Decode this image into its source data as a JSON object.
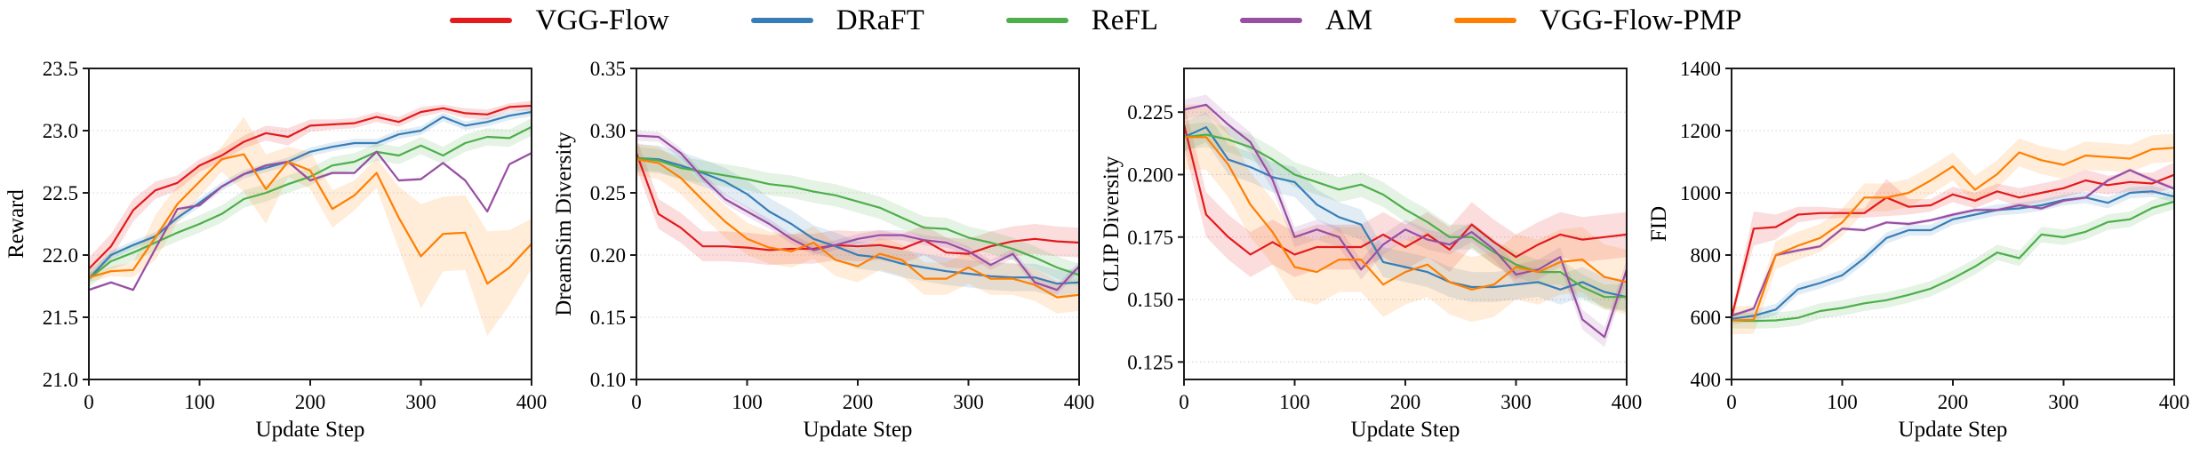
{
  "legend": {
    "items": [
      {
        "label": "VGG-Flow",
        "color": "#e41a1c"
      },
      {
        "label": "DRaFT",
        "color": "#377eb8"
      },
      {
        "label": "ReFL",
        "color": "#4daf4a"
      },
      {
        "label": "AM",
        "color": "#984ea3"
      },
      {
        "label": "VGG-Flow-PMP",
        "color": "#ff7f00"
      }
    ]
  },
  "shared": {
    "xlabel": "Update Step",
    "xticks": [
      0,
      100,
      200,
      300,
      400
    ],
    "xmax": 400,
    "xstep": 20
  },
  "chart_data": [
    {
      "type": "line",
      "title": "",
      "xlabel": "Update Step",
      "ylabel": "Reward",
      "ylim": [
        21.0,
        23.5
      ],
      "grid": true,
      "legend_position": "top-figure",
      "yticks": [
        {
          "v": 21.0,
          "label": "21.0"
        },
        {
          "v": 21.5,
          "label": "21.5"
        },
        {
          "v": 22.0,
          "label": "22.0"
        },
        {
          "v": 22.5,
          "label": "22.5"
        },
        {
          "v": 23.0,
          "label": "23.0"
        },
        {
          "v": 23.5,
          "label": "23.5"
        }
      ],
      "x": [
        0,
        20,
        40,
        60,
        80,
        100,
        120,
        140,
        160,
        180,
        200,
        220,
        240,
        260,
        280,
        300,
        320,
        340,
        360,
        380,
        400
      ],
      "series": [
        {
          "name": "VGG-Flow",
          "color": "#e41a1c",
          "values": [
            21.89,
            22.07,
            22.36,
            22.52,
            22.58,
            22.72,
            22.8,
            22.91,
            22.98,
            22.95,
            23.04,
            23.05,
            23.06,
            23.11,
            23.07,
            23.15,
            23.18,
            23.14,
            23.13,
            23.19,
            23.2
          ],
          "band": [
            0.09,
            0.1,
            0.09,
            0.07,
            0.06,
            0.05,
            0.05,
            0.05,
            0.06,
            0.07,
            0.05,
            0.04,
            0.04,
            0.04,
            0.04,
            0.04,
            0.03,
            0.04,
            0.04,
            0.03,
            0.04
          ]
        },
        {
          "name": "DRaFT",
          "color": "#377eb8",
          "values": [
            21.81,
            22.0,
            22.08,
            22.15,
            22.3,
            22.42,
            22.55,
            22.65,
            22.7,
            22.75,
            22.83,
            22.87,
            22.9,
            22.9,
            22.97,
            23.0,
            23.11,
            23.04,
            23.07,
            23.12,
            23.15
          ],
          "band": 0.035
        },
        {
          "name": "ReFL",
          "color": "#4daf4a",
          "values": [
            21.81,
            21.95,
            22.02,
            22.1,
            22.18,
            22.25,
            22.33,
            22.45,
            22.5,
            22.57,
            22.63,
            22.72,
            22.75,
            22.83,
            22.8,
            22.88,
            22.8,
            22.9,
            22.95,
            22.94,
            23.03
          ],
          "band": 0.07
        },
        {
          "name": "AM",
          "color": "#984ea3",
          "values": [
            21.72,
            21.78,
            21.72,
            22.05,
            22.37,
            22.4,
            22.55,
            22.65,
            22.72,
            22.75,
            22.6,
            22.66,
            22.66,
            22.83,
            22.6,
            22.61,
            22.74,
            22.6,
            22.35,
            22.73,
            22.82
          ],
          "band": 0.012
        },
        {
          "name": "VGG-Flow-PMP",
          "color": "#ff7f00",
          "values": [
            21.82,
            21.87,
            21.88,
            22.14,
            22.41,
            22.59,
            22.77,
            22.81,
            22.53,
            22.75,
            22.68,
            22.37,
            22.48,
            22.66,
            22.3,
            21.99,
            22.17,
            22.18,
            21.77,
            21.9,
            22.09
          ],
          "band": [
            0.04,
            0.04,
            0.06,
            0.18,
            0.15,
            0.12,
            0.1,
            0.3,
            0.28,
            0.12,
            0.15,
            0.15,
            0.12,
            0.12,
            0.25,
            0.42,
            0.3,
            0.3,
            0.42,
            0.3,
            0.2
          ]
        }
      ]
    },
    {
      "type": "line",
      "title": "",
      "xlabel": "Update Step",
      "ylabel": "DreamSim Diversity",
      "ylim": [
        0.1,
        0.35
      ],
      "grid": true,
      "yticks": [
        {
          "v": 0.1,
          "label": "0.10"
        },
        {
          "v": 0.15,
          "label": "0.15"
        },
        {
          "v": 0.2,
          "label": "0.20"
        },
        {
          "v": 0.25,
          "label": "0.25"
        },
        {
          "v": 0.3,
          "label": "0.30"
        },
        {
          "v": 0.35,
          "label": "0.35"
        }
      ],
      "x": [
        0,
        20,
        40,
        60,
        80,
        100,
        120,
        140,
        160,
        180,
        200,
        220,
        240,
        260,
        280,
        300,
        320,
        340,
        360,
        380,
        400
      ],
      "series": [
        {
          "name": "VGG-Flow",
          "color": "#e41a1c",
          "values": [
            0.282,
            0.233,
            0.222,
            0.207,
            0.207,
            0.206,
            0.204,
            0.205,
            0.205,
            0.208,
            0.207,
            0.208,
            0.205,
            0.212,
            0.202,
            0.201,
            0.207,
            0.211,
            0.213,
            0.211,
            0.21
          ],
          "band": 0.012
        },
        {
          "name": "DRaFT",
          "color": "#377eb8",
          "values": [
            0.278,
            0.277,
            0.272,
            0.266,
            0.259,
            0.249,
            0.235,
            0.225,
            0.213,
            0.207,
            0.2,
            0.198,
            0.193,
            0.19,
            0.187,
            0.185,
            0.183,
            0.182,
            0.182,
            0.177,
            0.178
          ],
          "band": 0.011
        },
        {
          "name": "ReFL",
          "color": "#4daf4a",
          "values": [
            0.278,
            0.276,
            0.27,
            0.267,
            0.264,
            0.261,
            0.257,
            0.255,
            0.251,
            0.248,
            0.243,
            0.238,
            0.23,
            0.222,
            0.221,
            0.214,
            0.21,
            0.205,
            0.198,
            0.19,
            0.184
          ],
          "band": 0.009
        },
        {
          "name": "AM",
          "color": "#984ea3",
          "values": [
            0.296,
            0.295,
            0.282,
            0.262,
            0.245,
            0.235,
            0.225,
            0.213,
            0.204,
            0.208,
            0.213,
            0.216,
            0.216,
            0.212,
            0.21,
            0.203,
            0.192,
            0.201,
            0.178,
            0.172,
            0.191
          ],
          "band": 0.004
        },
        {
          "name": "VGG-Flow-PMP",
          "color": "#ff7f00",
          "values": [
            0.277,
            0.274,
            0.262,
            0.244,
            0.227,
            0.213,
            0.206,
            0.203,
            0.21,
            0.196,
            0.191,
            0.201,
            0.196,
            0.181,
            0.181,
            0.19,
            0.181,
            0.181,
            0.176,
            0.166,
            0.168
          ],
          "band": 0.013
        }
      ]
    },
    {
      "type": "line",
      "title": "",
      "xlabel": "Update Step",
      "ylabel": "CLIP Diversity",
      "ylim": [
        0.118,
        0.2425
      ],
      "grid": true,
      "yticks": [
        {
          "v": 0.125,
          "label": "0.125"
        },
        {
          "v": 0.15,
          "label": "0.150"
        },
        {
          "v": 0.175,
          "label": "0.175"
        },
        {
          "v": 0.2,
          "label": "0.200"
        },
        {
          "v": 0.225,
          "label": "0.225"
        }
      ],
      "x": [
        0,
        20,
        40,
        60,
        80,
        100,
        120,
        140,
        160,
        180,
        200,
        220,
        240,
        260,
        280,
        300,
        320,
        340,
        360,
        380,
        400
      ],
      "series": [
        {
          "name": "VGG-Flow",
          "color": "#e41a1c",
          "values": [
            0.22,
            0.184,
            0.175,
            0.168,
            0.173,
            0.168,
            0.171,
            0.171,
            0.171,
            0.176,
            0.171,
            0.176,
            0.17,
            0.18,
            0.173,
            0.167,
            0.172,
            0.176,
            0.174,
            0.175,
            0.176
          ],
          "band": 0.009
        },
        {
          "name": "DRaFT",
          "color": "#377eb8",
          "values": [
            0.215,
            0.219,
            0.206,
            0.203,
            0.199,
            0.197,
            0.188,
            0.183,
            0.18,
            0.165,
            0.163,
            0.161,
            0.157,
            0.155,
            0.155,
            0.156,
            0.157,
            0.154,
            0.157,
            0.153,
            0.151
          ],
          "band": 0.006
        },
        {
          "name": "ReFL",
          "color": "#4daf4a",
          "values": [
            0.215,
            0.216,
            0.214,
            0.211,
            0.206,
            0.2,
            0.197,
            0.194,
            0.196,
            0.192,
            0.186,
            0.181,
            0.175,
            0.175,
            0.169,
            0.164,
            0.161,
            0.161,
            0.155,
            0.151,
            0.151
          ],
          "band": 0.005
        },
        {
          "name": "AM",
          "color": "#984ea3",
          "values": [
            0.226,
            0.228,
            0.22,
            0.213,
            0.198,
            0.175,
            0.178,
            0.175,
            0.162,
            0.172,
            0.178,
            0.174,
            0.172,
            0.177,
            0.17,
            0.16,
            0.162,
            0.167,
            0.142,
            0.135,
            0.162
          ],
          "band": 0.004
        },
        {
          "name": "VGG-Flow-PMP",
          "color": "#ff7f00",
          "values": [
            0.215,
            0.215,
            0.204,
            0.188,
            0.177,
            0.163,
            0.161,
            0.166,
            0.166,
            0.156,
            0.161,
            0.164,
            0.157,
            0.154,
            0.156,
            0.163,
            0.161,
            0.165,
            0.166,
            0.159,
            0.157
          ],
          "band": 0.013
        }
      ]
    },
    {
      "type": "line",
      "title": "",
      "xlabel": "Update Step",
      "ylabel": "FID",
      "ylim": [
        400,
        1400
      ],
      "grid": true,
      "yticks": [
        {
          "v": 400,
          "label": "400"
        },
        {
          "v": 600,
          "label": "600"
        },
        {
          "v": 800,
          "label": "800"
        },
        {
          "v": 1000,
          "label": "1000"
        },
        {
          "v": 1200,
          "label": "1200"
        },
        {
          "v": 1400,
          "label": "1400"
        }
      ],
      "x": [
        0,
        20,
        40,
        60,
        80,
        100,
        120,
        140,
        160,
        180,
        200,
        220,
        240,
        260,
        280,
        300,
        320,
        340,
        360,
        380,
        400
      ],
      "series": [
        {
          "name": "VGG-Flow",
          "color": "#e41a1c",
          "values": [
            600,
            885,
            890,
            930,
            935,
            935,
            935,
            985,
            955,
            960,
            995,
            975,
            1005,
            985,
            1000,
            1015,
            1040,
            1025,
            1035,
            1030,
            1058
          ],
          "band": [
            15,
            55,
            40,
            25,
            20,
            15,
            15,
            60,
            25,
            20,
            25,
            25,
            25,
            30,
            30,
            30,
            35,
            30,
            30,
            35,
            40
          ]
        },
        {
          "name": "DRaFT",
          "color": "#377eb8",
          "values": [
            595,
            605,
            625,
            690,
            710,
            735,
            790,
            855,
            880,
            880,
            915,
            930,
            945,
            950,
            960,
            977,
            985,
            968,
            1000,
            1005,
            988
          ],
          "band": 18
        },
        {
          "name": "ReFL",
          "color": "#4daf4a",
          "values": [
            590,
            588,
            590,
            598,
            620,
            630,
            645,
            655,
            672,
            692,
            725,
            763,
            808,
            790,
            866,
            857,
            875,
            906,
            915,
            951,
            972
          ],
          "band": 25
        },
        {
          "name": "AM",
          "color": "#984ea3",
          "values": [
            605,
            628,
            800,
            815,
            828,
            885,
            880,
            905,
            900,
            912,
            930,
            945,
            945,
            960,
            950,
            975,
            985,
            1040,
            1073,
            1042,
            1013
          ],
          "band": 6
        },
        {
          "name": "VGG-Flow-PMP",
          "color": "#ff7f00",
          "values": [
            590,
            592,
            800,
            830,
            855,
            905,
            985,
            985,
            1000,
            1040,
            1085,
            1010,
            1060,
            1130,
            1105,
            1090,
            1120,
            1115,
            1110,
            1140,
            1145
          ],
          "band": 45
        }
      ]
    }
  ]
}
